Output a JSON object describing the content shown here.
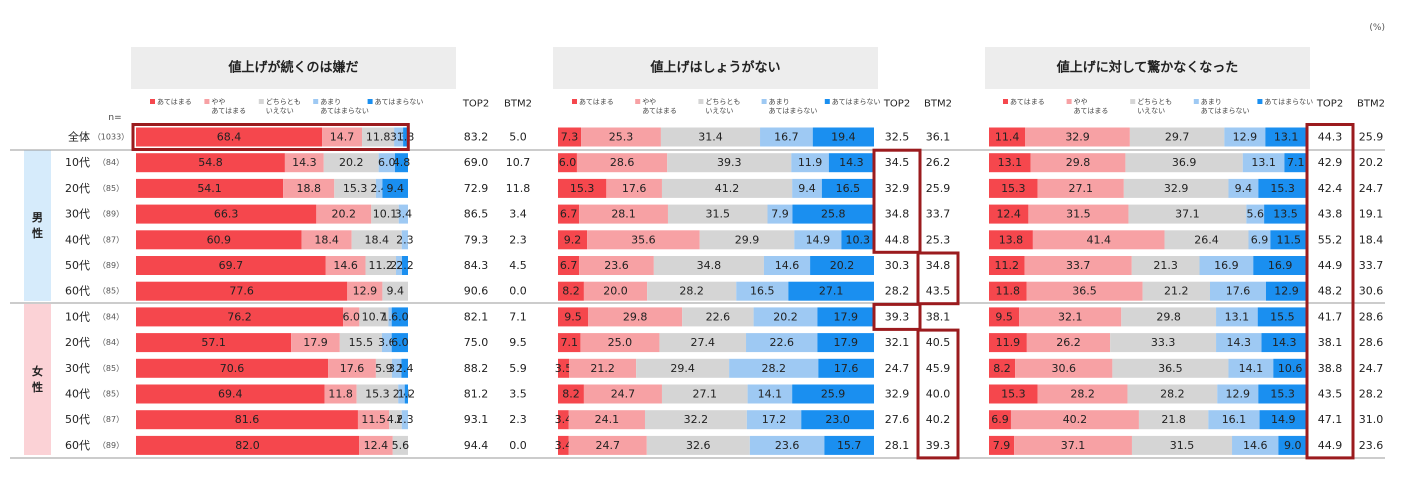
{
  "unit_note": "(%)",
  "n_label": "n=",
  "legend": [
    "あてはまる",
    "やや\nあてはまる",
    "どちらとも\nいえない",
    "あまり\nあてはまらない",
    "あてはまらない"
  ],
  "colors": {
    "s1": "#f5474d",
    "s2": "#f7a1a4",
    "s3": "#d5d5d5",
    "s4": "#9ec9f3",
    "s5": "#1a8ff0",
    "title_bg": "#ededed",
    "group_male_bg": "#d6ebfb",
    "group_female_bg": "#fbd2d6",
    "highlight": "#9b1b1e"
  },
  "col_headers": {
    "top2": "TOP2",
    "btm2": "BTM2"
  },
  "groups": [
    {
      "label": "男\n性"
    },
    {
      "label": "女\n性"
    }
  ],
  "rows": [
    {
      "label": "全体",
      "n": "（1033）"
    },
    {
      "label": "10代",
      "n": "（84）"
    },
    {
      "label": "20代",
      "n": "（85）"
    },
    {
      "label": "30代",
      "n": "（89）"
    },
    {
      "label": "40代",
      "n": "（87）"
    },
    {
      "label": "50代",
      "n": "（89）"
    },
    {
      "label": "60代",
      "n": "（85）"
    },
    {
      "label": "10代",
      "n": "（84）"
    },
    {
      "label": "20代",
      "n": "（84）"
    },
    {
      "label": "30代",
      "n": "（85）"
    },
    {
      "label": "40代",
      "n": "（85）"
    },
    {
      "label": "50代",
      "n": "（87）"
    },
    {
      "label": "60代",
      "n": "（89）"
    }
  ],
  "chart_data": [
    {
      "type": "bar",
      "stacked": "100%",
      "orientation": "horizontal",
      "title": "値上げが続くのは嫌だ",
      "categories": [
        "全体",
        "男性10代",
        "男性20代",
        "男性30代",
        "男性40代",
        "男性50代",
        "男性60代",
        "女性10代",
        "女性20代",
        "女性30代",
        "女性40代",
        "女性50代",
        "女性60代"
      ],
      "series": [
        {
          "name": "あてはまる",
          "values": [
            68.4,
            54.8,
            54.1,
            66.3,
            60.9,
            69.7,
            77.6,
            76.2,
            57.1,
            70.6,
            69.4,
            81.6,
            82.0
          ]
        },
        {
          "name": "やや\nあてはまる",
          "values": [
            14.7,
            14.3,
            18.8,
            20.2,
            18.4,
            14.6,
            12.9,
            6.0,
            17.9,
            17.6,
            11.8,
            11.5,
            12.4
          ]
        },
        {
          "name": "どちらとも\nいえない",
          "values": [
            11.8,
            20.2,
            15.3,
            10.1,
            18.4,
            11.2,
            9.4,
            10.7,
            15.5,
            5.9,
            15.3,
            4.6,
            5.6
          ]
        },
        {
          "name": "あまり\nあてはまらない",
          "values": [
            3.3,
            6.0,
            2.4,
            3.4,
            2.3,
            2.2,
            0.0,
            1.2,
            3.6,
            3.5,
            2.4,
            2.3,
            0.0
          ]
        },
        {
          "name": "あてはまらない",
          "values": [
            1.8,
            4.8,
            9.4,
            0.0,
            0.0,
            2.2,
            0.0,
            6.0,
            6.0,
            2.4,
            1.2,
            0.0,
            0.0
          ]
        }
      ],
      "top2": [
        "83.2",
        "69.0",
        "72.9",
        "86.5",
        "79.3",
        "84.3",
        "90.6",
        "82.1",
        "75.0",
        "88.2",
        "81.2",
        "93.1",
        "94.4"
      ],
      "btm2": [
        "5.0",
        "10.7",
        "11.8",
        "3.4",
        "2.3",
        "4.5",
        "0.0",
        "7.1",
        "9.5",
        "5.9",
        "3.5",
        "2.3",
        "0.0"
      ]
    },
    {
      "type": "bar",
      "stacked": "100%",
      "orientation": "horizontal",
      "title": "値上げはしょうがない",
      "categories": [
        "全体",
        "男性10代",
        "男性20代",
        "男性30代",
        "男性40代",
        "男性50代",
        "男性60代",
        "女性10代",
        "女性20代",
        "女性30代",
        "女性40代",
        "女性50代",
        "女性60代"
      ],
      "series": [
        {
          "name": "あてはまる",
          "values": [
            7.3,
            6.0,
            15.3,
            6.7,
            9.2,
            6.7,
            8.2,
            9.5,
            7.1,
            3.5,
            8.2,
            3.4,
            3.4
          ]
        },
        {
          "name": "やや\nあてはまる",
          "values": [
            25.3,
            28.6,
            17.6,
            28.1,
            35.6,
            23.6,
            20.0,
            29.8,
            25.0,
            21.2,
            24.7,
            24.1,
            24.7
          ]
        },
        {
          "name": "どちらとも\nいえない",
          "values": [
            31.4,
            39.3,
            41.2,
            31.5,
            29.9,
            34.8,
            28.2,
            22.6,
            27.4,
            29.4,
            27.1,
            32.2,
            32.6
          ]
        },
        {
          "name": "あまり\nあてはまらない",
          "values": [
            16.7,
            11.9,
            9.4,
            7.9,
            14.9,
            14.6,
            16.5,
            20.2,
            22.6,
            28.2,
            14.1,
            17.2,
            23.6
          ]
        },
        {
          "name": "あてはまらない",
          "values": [
            19.4,
            14.3,
            16.5,
            25.8,
            10.3,
            20.2,
            27.1,
            17.9,
            17.9,
            17.6,
            25.9,
            23.0,
            15.7
          ]
        }
      ],
      "top2": [
        "32.5",
        "34.5",
        "32.9",
        "34.8",
        "44.8",
        "30.3",
        "28.2",
        "39.3",
        "32.1",
        "24.7",
        "32.9",
        "27.6",
        "28.1"
      ],
      "btm2": [
        "36.1",
        "26.2",
        "25.9",
        "33.7",
        "25.3",
        "34.8",
        "43.5",
        "38.1",
        "40.5",
        "45.9",
        "40.0",
        "40.2",
        "39.3"
      ]
    },
    {
      "type": "bar",
      "stacked": "100%",
      "orientation": "horizontal",
      "title": "値上げに対して驚かなくなった",
      "categories": [
        "全体",
        "男性10代",
        "男性20代",
        "男性30代",
        "男性40代",
        "男性50代",
        "男性60代",
        "女性10代",
        "女性20代",
        "女性30代",
        "女性40代",
        "女性50代",
        "女性60代"
      ],
      "series": [
        {
          "name": "あてはまる",
          "values": [
            11.4,
            13.1,
            15.3,
            12.4,
            13.8,
            11.2,
            11.8,
            9.5,
            11.9,
            8.2,
            15.3,
            6.9,
            7.9
          ]
        },
        {
          "name": "やや\nあてはまる",
          "values": [
            32.9,
            29.8,
            27.1,
            31.5,
            41.4,
            33.7,
            36.5,
            32.1,
            26.2,
            30.6,
            28.2,
            40.2,
            37.1
          ]
        },
        {
          "name": "どちらとも\nいえない",
          "values": [
            29.7,
            36.9,
            32.9,
            37.1,
            26.4,
            21.3,
            21.2,
            29.8,
            33.3,
            36.5,
            28.2,
            21.8,
            31.5
          ]
        },
        {
          "name": "あまり\nあてはまらない",
          "values": [
            12.9,
            13.1,
            9.4,
            5.6,
            6.9,
            16.9,
            17.6,
            13.1,
            14.3,
            14.1,
            12.9,
            16.1,
            14.6
          ]
        },
        {
          "name": "あてはまらない",
          "values": [
            13.1,
            7.1,
            15.3,
            13.5,
            11.5,
            16.9,
            12.9,
            15.5,
            14.3,
            10.6,
            15.3,
            14.9,
            9.0
          ]
        }
      ],
      "top2": [
        "44.3",
        "42.9",
        "42.4",
        "43.8",
        "55.2",
        "44.9",
        "48.2",
        "41.7",
        "38.1",
        "38.8",
        "43.5",
        "47.1",
        "44.9"
      ],
      "btm2": [
        "25.9",
        "20.2",
        "24.7",
        "19.1",
        "18.4",
        "33.7",
        "30.6",
        "28.6",
        "28.6",
        "24.7",
        "28.2",
        "31.0",
        "23.6"
      ]
    }
  ]
}
